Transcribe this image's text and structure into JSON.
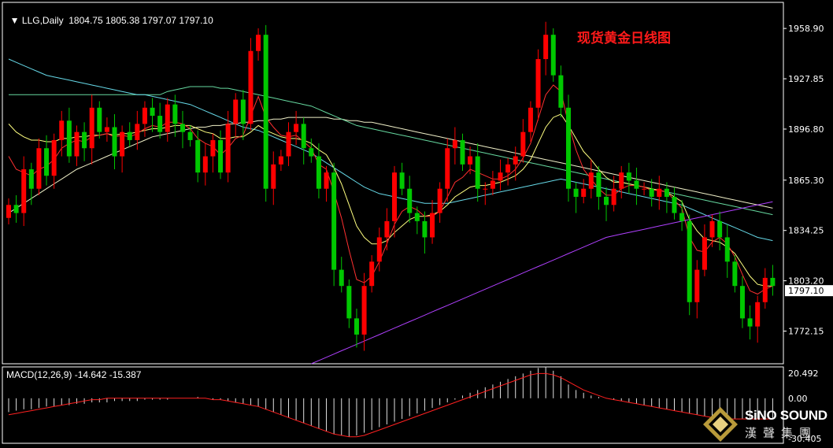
{
  "header": {
    "symbol": "LLG,Daily",
    "ohlc": "1804.75 1805.38 1797.07 1797.10"
  },
  "title": "现货黄金日线图",
  "macd": {
    "label": "MACD(12,26,9) -14.642 -15.387",
    "axis": [
      "20.492",
      "0.00",
      "-30.405"
    ]
  },
  "logo": {
    "en": "SiNO SOUND",
    "cn": "漢聲集團"
  },
  "colors": {
    "up": "#ff0000",
    "down": "#00c800",
    "ma_red": "#ff3030",
    "ma_yellow": "#ffff80",
    "ma_cyan": "#66d9e8",
    "ma_green": "#66d9a0",
    "ma_white": "#f0f0c8",
    "ma_purple": "#b040ff",
    "macd_signal": "#ff2020",
    "macd_hist": "#e0e0e0"
  },
  "chart_data": {
    "type": "candlestick",
    "current_price": "1797.10",
    "y_ticks": [
      "1958.90",
      "1927.85",
      "1896.80",
      "1865.30",
      "1834.25",
      "1803.20",
      "1772.15"
    ],
    "ylim": [
      1752,
      1975
    ],
    "close": [
      1850,
      1845,
      1872,
      1860,
      1885,
      1868,
      1890,
      1902,
      1880,
      1895,
      1885,
      1910,
      1895,
      1898,
      1880,
      1895,
      1890,
      1900,
      1910,
      1905,
      1895,
      1912,
      1900,
      1895,
      1890,
      1870,
      1880,
      1890,
      1870,
      1900,
      1915,
      1900,
      1945,
      1955,
      1860,
      1875,
      1880,
      1895,
      1900,
      1885,
      1880,
      1860,
      1870,
      1810,
      1800,
      1780,
      1770,
      1800,
      1815,
      1830,
      1840,
      1870,
      1860,
      1845,
      1840,
      1830,
      1845,
      1860,
      1885,
      1890,
      1875,
      1880,
      1860,
      1860,
      1865,
      1870,
      1875,
      1880,
      1895,
      1910,
      1940,
      1955,
      1930,
      1910,
      1860,
      1855,
      1860,
      1870,
      1855,
      1850,
      1860,
      1870,
      1865,
      1860,
      1860,
      1855,
      1860,
      1855,
      1845,
      1840,
      1790,
      1810,
      1830,
      1840,
      1830,
      1815,
      1800,
      1780,
      1775,
      1790,
      1805,
      1800
    ],
    "ma_red": [
      1880,
      1872,
      1870,
      1868,
      1872,
      1874,
      1878,
      1885,
      1888,
      1890,
      1889,
      1892,
      1893,
      1894,
      1892,
      1893,
      1892,
      1894,
      1897,
      1899,
      1898,
      1901,
      1901,
      1900,
      1897,
      1891,
      1888,
      1886,
      1881,
      1885,
      1891,
      1893,
      1905,
      1917,
      1904,
      1898,
      1893,
      1892,
      1893,
      1889,
      1885,
      1875,
      1872,
      1858,
      1842,
      1822,
      1804,
      1802,
      1806,
      1815,
      1826,
      1838,
      1846,
      1849,
      1847,
      1843,
      1843,
      1846,
      1855,
      1864,
      1867,
      1872,
      1870,
      1868,
      1866,
      1866,
      1868,
      1872,
      1879,
      1888,
      1903,
      1918,
      1924,
      1920,
      1900,
      1884,
      1872,
      1866,
      1860,
      1856,
      1856,
      1860,
      1862,
      1862,
      1861,
      1859,
      1859,
      1858,
      1853,
      1848,
      1830,
      1822,
      1821,
      1827,
      1830,
      1826,
      1818,
      1807,
      1797,
      1795,
      1798,
      1800
    ],
    "ma_yellow": [
      1900,
      1895,
      1892,
      1890,
      1890,
      1889,
      1889,
      1891,
      1891,
      1892,
      1892,
      1893,
      1893,
      1894,
      1893,
      1894,
      1894,
      1895,
      1896,
      1897,
      1897,
      1898,
      1899,
      1899,
      1899,
      1897,
      1895,
      1894,
      1891,
      1891,
      1892,
      1892,
      1895,
      1899,
      1896,
      1894,
      1892,
      1891,
      1891,
      1890,
      1888,
      1884,
      1881,
      1873,
      1863,
      1850,
      1837,
      1830,
      1826,
      1826,
      1828,
      1833,
      1837,
      1841,
      1843,
      1843,
      1844,
      1846,
      1850,
      1855,
      1858,
      1861,
      1862,
      1862,
      1863,
      1864,
      1866,
      1868,
      1872,
      1878,
      1888,
      1898,
      1904,
      1906,
      1899,
      1891,
      1883,
      1878,
      1872,
      1867,
      1864,
      1864,
      1863,
      1862,
      1861,
      1860,
      1859,
      1858,
      1855,
      1852,
      1841,
      1834,
      1829,
      1828,
      1827,
      1824,
      1820,
      1813,
      1806,
      1801,
      1800,
      1800
    ],
    "ma_cyan": [
      1940,
      1938,
      1936,
      1934,
      1932,
      1930,
      1929,
      1928,
      1927,
      1926,
      1925,
      1924,
      1923,
      1922,
      1921,
      1920,
      1919,
      1918,
      1918,
      1917,
      1916,
      1915,
      1914,
      1913,
      1912,
      1910,
      1908,
      1906,
      1904,
      1902,
      1900,
      1898,
      1897,
      1896,
      1894,
      1892,
      1890,
      1888,
      1886,
      1884,
      1882,
      1879,
      1876,
      1873,
      1870,
      1867,
      1864,
      1861,
      1859,
      1857,
      1856,
      1855,
      1854,
      1853,
      1852,
      1851,
      1851,
      1851,
      1851,
      1852,
      1853,
      1854,
      1855,
      1856,
      1857,
      1858,
      1859,
      1860,
      1861,
      1862,
      1863,
      1864,
      1865,
      1866,
      1865,
      1864,
      1863,
      1862,
      1861,
      1860,
      1859,
      1858,
      1857,
      1856,
      1855,
      1854,
      1853,
      1852,
      1851,
      1850,
      1848,
      1846,
      1844,
      1842,
      1840,
      1838,
      1836,
      1834,
      1832,
      1830,
      1829,
      1828
    ],
    "ma_green": [
      1918,
      1918,
      1918,
      1918,
      1918,
      1918,
      1918,
      1918,
      1918,
      1918,
      1918,
      1918,
      1918,
      1918,
      1918,
      1918,
      1918,
      1918,
      1918,
      1918,
      1918,
      1920,
      1921,
      1922,
      1923,
      1923,
      1923,
      1923,
      1922,
      1922,
      1921,
      1920,
      1919,
      1918,
      1917,
      1916,
      1915,
      1914,
      1913,
      1912,
      1911,
      1909,
      1907,
      1905,
      1903,
      1901,
      1899,
      1898,
      1897,
      1896,
      1895,
      1894,
      1893,
      1892,
      1891,
      1890,
      1889,
      1888,
      1887,
      1886,
      1885,
      1884,
      1883,
      1882,
      1881,
      1880,
      1879,
      1878,
      1877,
      1876,
      1875,
      1874,
      1873,
      1872,
      1871,
      1870,
      1869,
      1868,
      1867,
      1866,
      1865,
      1864,
      1863,
      1862,
      1861,
      1860,
      1859,
      1858,
      1857,
      1856,
      1855,
      1854,
      1853,
      1852,
      1851,
      1850,
      1849,
      1848,
      1847,
      1846,
      1845,
      1844
    ],
    "ma_white": [
      1845,
      1848,
      1851,
      1854,
      1857,
      1860,
      1863,
      1866,
      1869,
      1872,
      1874,
      1876,
      1878,
      1880,
      1882,
      1884,
      1886,
      1888,
      1890,
      1892,
      1893,
      1894,
      1895,
      1896,
      1897,
      1898,
      1898,
      1899,
      1899,
      1900,
      1900,
      1901,
      1901,
      1902,
      1902,
      1903,
      1903,
      1904,
      1904,
      1904,
      1904,
      1904,
      1904,
      1903,
      1903,
      1902,
      1902,
      1901,
      1901,
      1900,
      1899,
      1898,
      1897,
      1896,
      1895,
      1894,
      1893,
      1892,
      1891,
      1890,
      1889,
      1888,
      1887,
      1886,
      1885,
      1884,
      1883,
      1882,
      1881,
      1880,
      1879,
      1878,
      1877,
      1876,
      1875,
      1874,
      1873,
      1872,
      1871,
      1870,
      1869,
      1868,
      1867,
      1866,
      1865,
      1864,
      1863,
      1862,
      1861,
      1860,
      1859,
      1858,
      1857,
      1856,
      1855,
      1854,
      1853,
      1852,
      1851,
      1850,
      1849,
      1848
    ],
    "ma_purple_start_index": 40,
    "ma_purple": [
      1752,
      1754,
      1756,
      1758,
      1760,
      1762,
      1764,
      1766,
      1768,
      1770,
      1772,
      1774,
      1776,
      1778,
      1780,
      1782,
      1784,
      1786,
      1788,
      1790,
      1792,
      1794,
      1796,
      1798,
      1800,
      1802,
      1804,
      1806,
      1808,
      1810,
      1812,
      1814,
      1816,
      1818,
      1820,
      1822,
      1824,
      1826,
      1828,
      1830,
      1831,
      1832,
      1833,
      1834,
      1835,
      1836,
      1837,
      1838,
      1839,
      1840,
      1841,
      1842,
      1843,
      1844,
      1845,
      1846,
      1847,
      1848,
      1849,
      1850,
      1851,
      1852
    ],
    "macd": {
      "ylim": [
        -30.405,
        20.492
      ],
      "hist": [
        -10,
        -9,
        -8,
        -8,
        -7,
        -6,
        -6,
        -5,
        -5,
        -4,
        -4,
        -3,
        -3,
        -3,
        -2,
        -2,
        -2,
        -2,
        -1,
        -1,
        -1,
        -1,
        0,
        0,
        0,
        1,
        0,
        -1,
        -1,
        -2,
        -3,
        -4,
        -5,
        -6,
        -8,
        -10,
        -12,
        -14,
        -16,
        -18,
        -20,
        -22,
        -24,
        -26,
        -27,
        -28,
        -27,
        -25,
        -23,
        -21,
        -19,
        -17,
        -15,
        -13,
        -11,
        -9,
        -7,
        -5,
        -3,
        -1,
        2,
        4,
        6,
        8,
        10,
        12,
        14,
        16,
        18,
        20,
        22,
        23,
        20,
        16,
        10,
        6,
        4,
        2,
        1,
        0,
        -1,
        -2,
        -3,
        -4,
        -5,
        -6,
        -7,
        -8,
        -9,
        -10,
        -11,
        -12,
        -13,
        -14,
        -14,
        -15,
        -15,
        -15,
        -15,
        -15,
        -15,
        -15
      ],
      "signal": [
        -12,
        -11,
        -10,
        -9,
        -8,
        -7,
        -6,
        -5,
        -4,
        -3,
        -2,
        -1,
        -1,
        0,
        0,
        0,
        0,
        0,
        0,
        0,
        0,
        0,
        0,
        0,
        0,
        0,
        0,
        -1,
        -1,
        -2,
        -3,
        -4,
        -5,
        -6,
        -8,
        -10,
        -12,
        -14,
        -16,
        -18,
        -20,
        -22,
        -24,
        -26,
        -27,
        -28,
        -28,
        -27,
        -25,
        -23,
        -21,
        -19,
        -17,
        -15,
        -13,
        -11,
        -9,
        -7,
        -5,
        -3,
        -1,
        1,
        3,
        5,
        7,
        9,
        11,
        13,
        15,
        17,
        18,
        18,
        17,
        15,
        12,
        9,
        6,
        4,
        2,
        0,
        -1,
        -2,
        -3,
        -4,
        -5,
        -6,
        -7,
        -8,
        -9,
        -10,
        -11,
        -12,
        -13,
        -14,
        -14,
        -15,
        -15,
        -15,
        -15,
        -15,
        -15,
        -15
      ]
    }
  }
}
